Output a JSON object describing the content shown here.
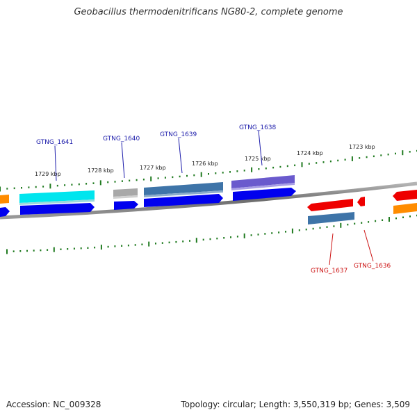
{
  "title": "Geobacillus thermodenitrificans NG80-2, complete genome",
  "footer": {
    "accession": "Accession: NC_009328",
    "summary": "Topology: circular; Length: 3,550,319 bp; Genes: 3,509"
  },
  "colors": {
    "backbone": "#808080",
    "tick": "#1f7a1f",
    "forward_label": "#1a1aaa",
    "reverse_label": "#cc1111",
    "blue": "#0000ee",
    "cyan": "#00e5ee",
    "gray": "#a0a0a0",
    "steel": "#3e74a8",
    "purple": "#6a5acd",
    "red": "#ee0000",
    "orange": "#ff8c00"
  },
  "kbp_labels": [
    "1729 kbp",
    "1728 kbp",
    "1727 kbp",
    "1726 kbp",
    "1725 kbp",
    "1724 kbp",
    "1723 kbp"
  ],
  "gene_labels": {
    "forward": [
      "GTNG_1641",
      "GTNG_1640",
      "GTNG_1639",
      "GTNG_1638"
    ],
    "reverse": [
      "GTNG_1637",
      "GTNG_1636"
    ]
  }
}
